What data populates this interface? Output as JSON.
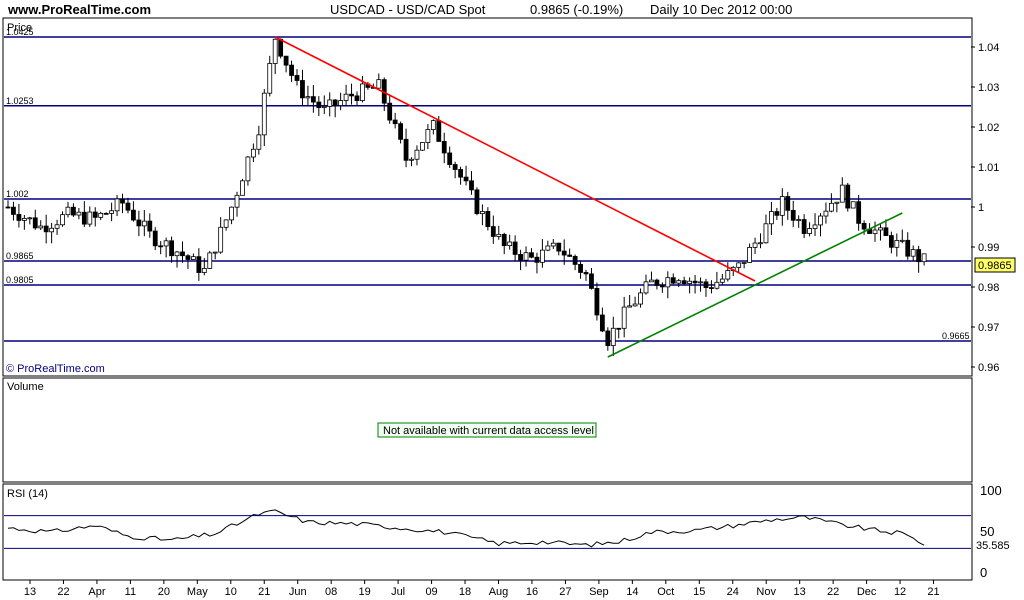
{
  "header": {
    "site": "www.ProRealTime.com",
    "symbol": "USDCAD - USD/CAD Spot",
    "quote": "0.9865 (-0.19%)",
    "period": "Daily  10 Dec 2012 00:00"
  },
  "price_panel": {
    "title": "Price",
    "watermark": "© ProRealTime.com",
    "last_price": "0.9865"
  },
  "volume_panel": {
    "title": "Volume",
    "notice": "Not available with current data access level"
  },
  "rsi_panel": {
    "title": "RSI (14)",
    "last_value": "35.585"
  },
  "colors": {
    "frame": "#000000",
    "level_line": "#000080",
    "trend_down": "#ff0000",
    "trend_up": "#008000",
    "candle_up": "#ffffff",
    "candle_down": "#000000",
    "price_box": "#ffff66",
    "rsi_line": "#000000",
    "rsi_band": "#000080",
    "rsi_over": "#c080c0",
    "notice_border": "#008000",
    "notice_bg": "#f0fff0"
  },
  "chart_data": {
    "type": "candlestick",
    "x_tick_labels": [
      "13",
      "22",
      "Apr",
      "11",
      "20",
      "May",
      "10",
      "21",
      "Jun",
      "08",
      "19",
      "Jul",
      "09",
      "18",
      "Aug",
      "16",
      "27",
      "Sep",
      "14",
      "Oct",
      "15",
      "24",
      "Nov",
      "13",
      "22",
      "Dec",
      "12",
      "21"
    ],
    "price_axis": {
      "ylim": [
        0.958,
        1.047
      ],
      "ticks": [
        "0.96",
        "0.97",
        "0.98",
        "0.99",
        "1",
        "1.01",
        "1.02",
        "1.03",
        "1.04"
      ]
    },
    "horizontal_levels": [
      {
        "value": 1.0425,
        "label": "1.0425"
      },
      {
        "value": 1.0253,
        "label": "1.0253"
      },
      {
        "value": 1.002,
        "label": "1.002"
      },
      {
        "value": 0.9865,
        "label": "0.9865"
      },
      {
        "value": 0.9805,
        "label": "0.9805"
      },
      {
        "value": 0.9665,
        "label": "0.9665"
      }
    ],
    "trendlines": [
      {
        "name": "down",
        "from": [
          49,
          1.0425
        ],
        "to": [
          137,
          0.9815
        ]
      },
      {
        "name": "up",
        "from": [
          110,
          0.9625
        ],
        "to": [
          164,
          0.9985
        ]
      }
    ],
    "close_path": [
      [
        0,
        1.0
      ],
      [
        6,
        0.995
      ],
      [
        11,
        0.998
      ],
      [
        16,
        0.997
      ],
      [
        21,
        1.001
      ],
      [
        26,
        0.993
      ],
      [
        31,
        0.989
      ],
      [
        36,
        0.984
      ],
      [
        41,
        1.0
      ],
      [
        46,
        1.02
      ],
      [
        49,
        1.0425
      ],
      [
        53,
        1.03
      ],
      [
        58,
        1.024
      ],
      [
        63,
        1.028
      ],
      [
        68,
        1.03
      ],
      [
        73,
        1.012
      ],
      [
        78,
        1.02
      ],
      [
        82,
        1.01
      ],
      [
        86,
        1.0
      ],
      [
        91,
        0.99
      ],
      [
        96,
        0.987
      ],
      [
        101,
        0.99
      ],
      [
        106,
        0.983
      ],
      [
        110,
        0.967
      ],
      [
        114,
        0.975
      ],
      [
        118,
        0.981
      ],
      [
        123,
        0.983
      ],
      [
        128,
        0.98
      ],
      [
        131,
        0.982
      ],
      [
        134,
        0.985
      ],
      [
        138,
        0.993
      ],
      [
        142,
        1.001
      ],
      [
        146,
        0.995
      ],
      [
        150,
        1.0
      ],
      [
        153,
        1.004
      ],
      [
        156,
        0.997
      ],
      [
        160,
        0.993
      ],
      [
        165,
        0.989
      ],
      [
        168,
        0.9865
      ]
    ],
    "rsi_axis": {
      "ylim": [
        0,
        100
      ],
      "ticks": [
        "0",
        "50",
        "100"
      ],
      "bands": [
        70,
        30
      ]
    },
    "rsi_path": [
      [
        0,
        55
      ],
      [
        8,
        50
      ],
      [
        16,
        58
      ],
      [
        22,
        45
      ],
      [
        30,
        40
      ],
      [
        38,
        48
      ],
      [
        46,
        72
      ],
      [
        49,
        75
      ],
      [
        55,
        62
      ],
      [
        64,
        60
      ],
      [
        72,
        55
      ],
      [
        80,
        50
      ],
      [
        90,
        36
      ],
      [
        98,
        38
      ],
      [
        106,
        34
      ],
      [
        112,
        38
      ],
      [
        118,
        50
      ],
      [
        126,
        52
      ],
      [
        132,
        57
      ],
      [
        140,
        65
      ],
      [
        146,
        68
      ],
      [
        152,
        60
      ],
      [
        158,
        53
      ],
      [
        164,
        48
      ],
      [
        168,
        36
      ]
    ]
  }
}
